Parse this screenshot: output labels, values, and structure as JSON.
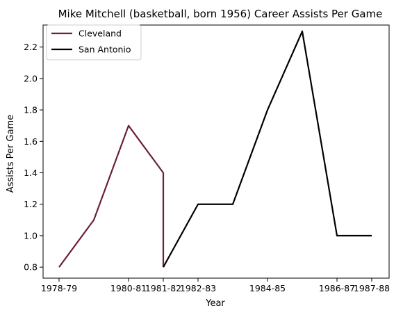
{
  "chart_data": {
    "type": "line",
    "title": "Mike Mitchell (basketball, born 1956) Career Assists Per Game",
    "xlabel": "Year",
    "ylabel": "Assists Per Game",
    "x_ticks": [
      "1978-79",
      "1980-81",
      "1981-82",
      "1982-83",
      "1984-85",
      "1986-87",
      "1987-88"
    ],
    "y_ticks": [
      "0.8",
      "1.0",
      "1.2",
      "1.4",
      "1.6",
      "1.8",
      "2.0",
      "2.2"
    ],
    "ylim": [
      0.73,
      2.34
    ],
    "grid": false,
    "legend_position": "top-left",
    "series": [
      {
        "name": "Cleveland",
        "color": "#6b1f3a",
        "points": [
          {
            "x": "1978-79",
            "y": 0.8
          },
          {
            "x": "1979-80",
            "y": 1.1
          },
          {
            "x": "1980-81",
            "y": 1.7
          },
          {
            "x": "1981-82",
            "y": 1.4
          },
          {
            "x": "1981-82",
            "y": 0.8
          }
        ]
      },
      {
        "name": "San Antonio",
        "color": "#000000",
        "points": [
          {
            "x": "1981-82",
            "y": 0.8
          },
          {
            "x": "1982-83",
            "y": 1.2
          },
          {
            "x": "1983-84",
            "y": 1.2
          },
          {
            "x": "1984-85",
            "y": 1.8
          },
          {
            "x": "1985-86",
            "y": 2.3
          },
          {
            "x": "1986-87",
            "y": 1.0
          },
          {
            "x": "1987-88",
            "y": 1.0
          }
        ]
      }
    ]
  }
}
